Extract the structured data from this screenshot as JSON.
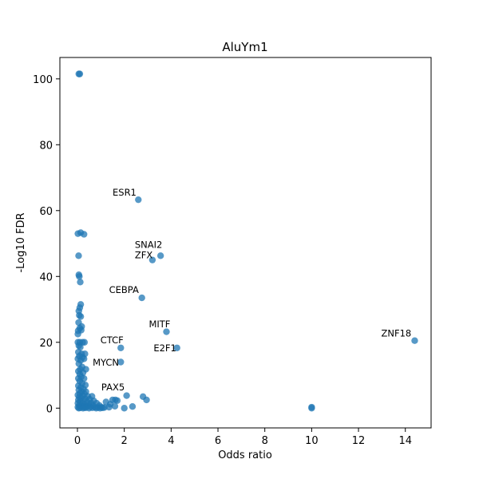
{
  "chart_data": {
    "type": "scatter",
    "title": "AluYm1",
    "xlabel": "Odds ratio",
    "ylabel": "-Log10 FDR",
    "xlim": [
      -0.75,
      15.1
    ],
    "ylim": [
      -6,
      106.5
    ],
    "xticks": [
      0,
      2,
      4,
      6,
      8,
      10,
      12,
      14
    ],
    "yticks": [
      0,
      20,
      40,
      60,
      80,
      100
    ],
    "grid": false,
    "color": "#1f77b4",
    "points": [
      {
        "x": 0.06,
        "y": 101.5
      },
      {
        "x": 0.1,
        "y": 101.5
      },
      {
        "x": 0.02,
        "y": 53.0
      },
      {
        "x": 0.14,
        "y": 53.3
      },
      {
        "x": 0.28,
        "y": 52.8
      },
      {
        "x": 0.05,
        "y": 46.3
      },
      {
        "x": 0.06,
        "y": 40.5
      },
      {
        "x": 0.08,
        "y": 40.0
      },
      {
        "x": 0.12,
        "y": 38.3
      },
      {
        "x": 0.14,
        "y": 31.5
      },
      {
        "x": 0.1,
        "y": 30.5
      },
      {
        "x": 0.06,
        "y": 29.5
      },
      {
        "x": 0.08,
        "y": 28.2
      },
      {
        "x": 0.14,
        "y": 27.8
      },
      {
        "x": 0.05,
        "y": 26.0
      },
      {
        "x": 0.18,
        "y": 24.8
      },
      {
        "x": 0.1,
        "y": 24.3
      },
      {
        "x": 0.03,
        "y": 23.5
      },
      {
        "x": 0.16,
        "y": 23.7
      },
      {
        "x": 0.02,
        "y": 22.5
      },
      {
        "x": 0.02,
        "y": 20.0
      },
      {
        "x": 0.1,
        "y": 20.0
      },
      {
        "x": 0.22,
        "y": 20.0
      },
      {
        "x": 0.3,
        "y": 20.0
      },
      {
        "x": 0.06,
        "y": 19.0
      },
      {
        "x": 0.12,
        "y": 18.5
      },
      {
        "x": 0.04,
        "y": 17.0
      },
      {
        "x": 0.18,
        "y": 16.5
      },
      {
        "x": 0.32,
        "y": 16.5
      },
      {
        "x": 0.08,
        "y": 15.8
      },
      {
        "x": 0.22,
        "y": 15.5
      },
      {
        "x": 0.02,
        "y": 15.0
      },
      {
        "x": 0.28,
        "y": 15.0
      },
      {
        "x": 0.14,
        "y": 14.5
      },
      {
        "x": 0.06,
        "y": 13.5
      },
      {
        "x": 0.2,
        "y": 12.5
      },
      {
        "x": 0.12,
        "y": 11.8
      },
      {
        "x": 0.36,
        "y": 11.8
      },
      {
        "x": 0.04,
        "y": 11.2
      },
      {
        "x": 0.24,
        "y": 10.8
      },
      {
        "x": 0.1,
        "y": 10.3
      },
      {
        "x": 0.16,
        "y": 9.5
      },
      {
        "x": 0.04,
        "y": 9.0
      },
      {
        "x": 0.28,
        "y": 9.0
      },
      {
        "x": 0.1,
        "y": 8.2
      },
      {
        "x": 0.2,
        "y": 7.5
      },
      {
        "x": 0.34,
        "y": 7.0
      },
      {
        "x": 0.04,
        "y": 6.8
      },
      {
        "x": 0.14,
        "y": 6.3
      },
      {
        "x": 0.26,
        "y": 5.8
      },
      {
        "x": 0.06,
        "y": 5.5
      },
      {
        "x": 0.18,
        "y": 5.0
      },
      {
        "x": 0.36,
        "y": 5.0
      },
      {
        "x": 0.1,
        "y": 4.5
      },
      {
        "x": 0.3,
        "y": 4.3
      },
      {
        "x": 0.02,
        "y": 4.0
      },
      {
        "x": 0.22,
        "y": 3.8
      },
      {
        "x": 0.44,
        "y": 3.6
      },
      {
        "x": 0.62,
        "y": 3.6
      },
      {
        "x": 0.08,
        "y": 3.3
      },
      {
        "x": 0.16,
        "y": 3.0
      },
      {
        "x": 0.34,
        "y": 2.8
      },
      {
        "x": 0.52,
        "y": 2.7
      },
      {
        "x": 0.04,
        "y": 2.5
      },
      {
        "x": 0.26,
        "y": 2.3
      },
      {
        "x": 0.7,
        "y": 2.2
      },
      {
        "x": 0.12,
        "y": 2.0
      },
      {
        "x": 0.42,
        "y": 1.9
      },
      {
        "x": 0.58,
        "y": 1.6
      },
      {
        "x": 0.82,
        "y": 1.5
      },
      {
        "x": 0.02,
        "y": 1.5
      },
      {
        "x": 0.2,
        "y": 1.3
      },
      {
        "x": 0.32,
        "y": 1.1
      },
      {
        "x": 0.48,
        "y": 1.0
      },
      {
        "x": 0.66,
        "y": 0.9
      },
      {
        "x": 0.94,
        "y": 0.8
      },
      {
        "x": 0.08,
        "y": 0.9
      },
      {
        "x": 0.16,
        "y": 0.6
      },
      {
        "x": 0.28,
        "y": 0.5
      },
      {
        "x": 0.4,
        "y": 0.6
      },
      {
        "x": 0.56,
        "y": 0.4
      },
      {
        "x": 0.74,
        "y": 0.3
      },
      {
        "x": 0.88,
        "y": 0.2
      },
      {
        "x": 1.02,
        "y": 0.3
      },
      {
        "x": 1.15,
        "y": 0.2
      },
      {
        "x": 0.02,
        "y": 0.3
      },
      {
        "x": 0.12,
        "y": 0.1
      },
      {
        "x": 0.24,
        "y": 0.0
      },
      {
        "x": 0.36,
        "y": 0.1
      },
      {
        "x": 0.5,
        "y": 0.0
      },
      {
        "x": 0.64,
        "y": 0.1
      },
      {
        "x": 0.8,
        "y": 0.0
      },
      {
        "x": 0.96,
        "y": 0.0
      },
      {
        "x": 1.08,
        "y": 0.1
      },
      {
        "x": 0.06,
        "y": 0.0
      },
      {
        "x": 0.3,
        "y": 0.2
      },
      {
        "x": 1.22,
        "y": 1.9
      },
      {
        "x": 1.4,
        "y": 1.2
      },
      {
        "x": 1.5,
        "y": 2.5
      },
      {
        "x": 1.62,
        "y": 2.5
      },
      {
        "x": 1.7,
        "y": 2.3
      },
      {
        "x": 1.6,
        "y": 0.6
      },
      {
        "x": 1.35,
        "y": 0.3
      },
      {
        "x": 2.1,
        "y": 3.8
      },
      {
        "x": 2.0,
        "y": 0.0
      },
      {
        "x": 2.35,
        "y": 0.5
      },
      {
        "x": 2.8,
        "y": 3.5
      },
      {
        "x": 2.95,
        "y": 2.5
      },
      {
        "x": 1.85,
        "y": 14.0
      },
      {
        "x": 1.85,
        "y": 18.3
      },
      {
        "x": 2.6,
        "y": 63.3
      },
      {
        "x": 3.2,
        "y": 45.0
      },
      {
        "x": 3.55,
        "y": 46.3
      },
      {
        "x": 2.75,
        "y": 33.5
      },
      {
        "x": 3.8,
        "y": 23.2
      },
      {
        "x": 4.25,
        "y": 18.3
      },
      {
        "x": 14.4,
        "y": 20.5
      },
      {
        "x": 10.0,
        "y": 0.3
      },
      {
        "x": 10.0,
        "y": 0.0
      }
    ],
    "annotations": [
      {
        "label": "ESR1",
        "x": 1.5,
        "y": 64.5
      },
      {
        "label": "SNAI2",
        "x": 2.45,
        "y": 48.7
      },
      {
        "label": "ZFX",
        "x": 2.45,
        "y": 45.5
      },
      {
        "label": "CEBPA",
        "x": 1.35,
        "y": 35.0
      },
      {
        "label": "MITF",
        "x": 3.05,
        "y": 24.5
      },
      {
        "label": "CTCF",
        "x": 0.98,
        "y": 19.7
      },
      {
        "label": "E2F1",
        "x": 3.25,
        "y": 17.3
      },
      {
        "label": "ZNF18",
        "x": 12.97,
        "y": 21.8
      },
      {
        "label": "MYCN",
        "x": 0.65,
        "y": 12.9
      },
      {
        "label": "PAX5",
        "x": 1.02,
        "y": 5.4
      }
    ]
  }
}
